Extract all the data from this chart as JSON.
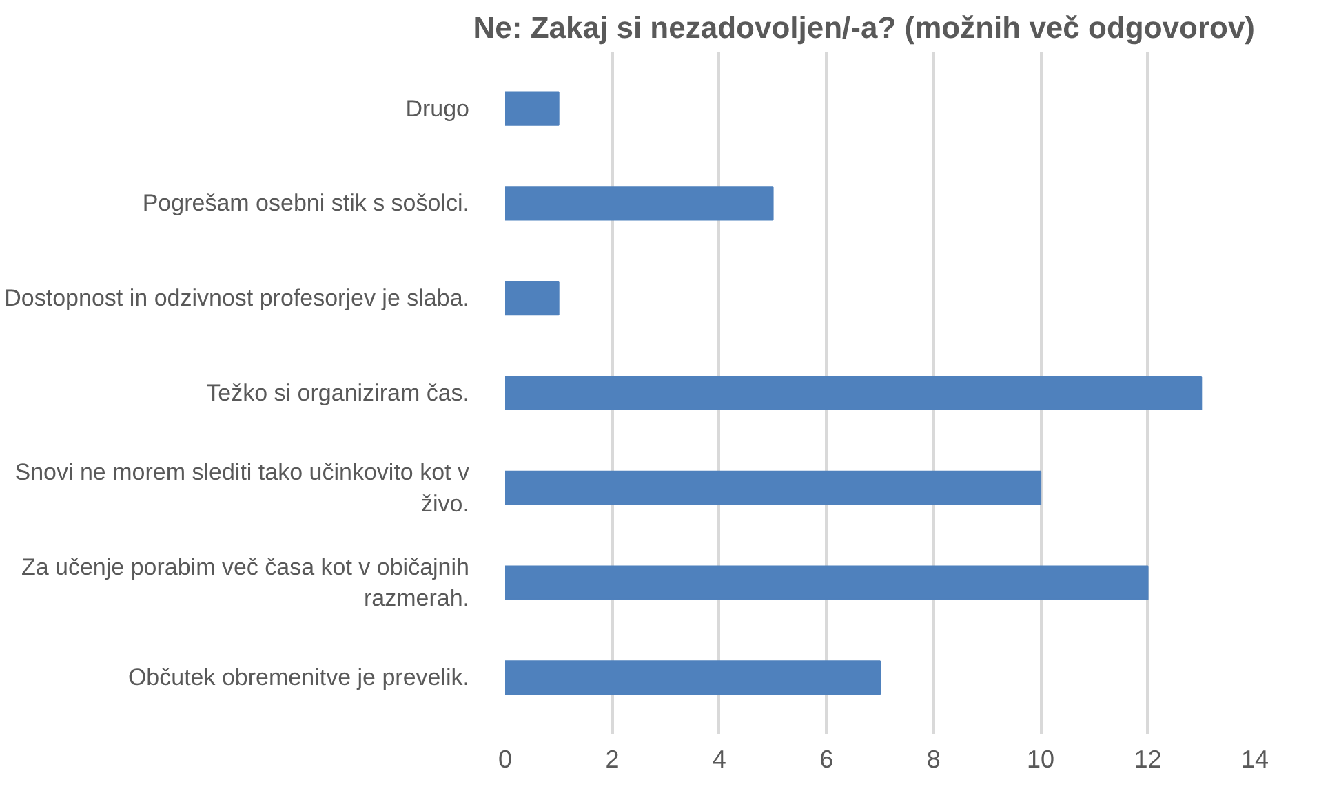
{
  "chart_data": {
    "type": "bar",
    "orientation": "horizontal",
    "title": "Ne: Zakaj si nezadovoljen/-a? (možnih več odgovorov)",
    "categories": [
      "Drugo",
      "Pogrešam osebni stik s sošolci.",
      "Dostopnost in odzivnost profesorjev je slaba.",
      "Težko si organiziram čas.",
      "Snovi ne morem slediti tako učinkovito kot v živo.",
      "Za učenje porabim več časa kot v običajnih razmerah.",
      "Občutek obremenitve je prevelik."
    ],
    "values": [
      1,
      5,
      1,
      13,
      10,
      12,
      7
    ],
    "color": "#4f81bd",
    "xlim": [
      0,
      14
    ],
    "xticks": [
      0,
      2,
      4,
      6,
      8,
      10,
      12,
      14
    ],
    "grid": "x"
  }
}
